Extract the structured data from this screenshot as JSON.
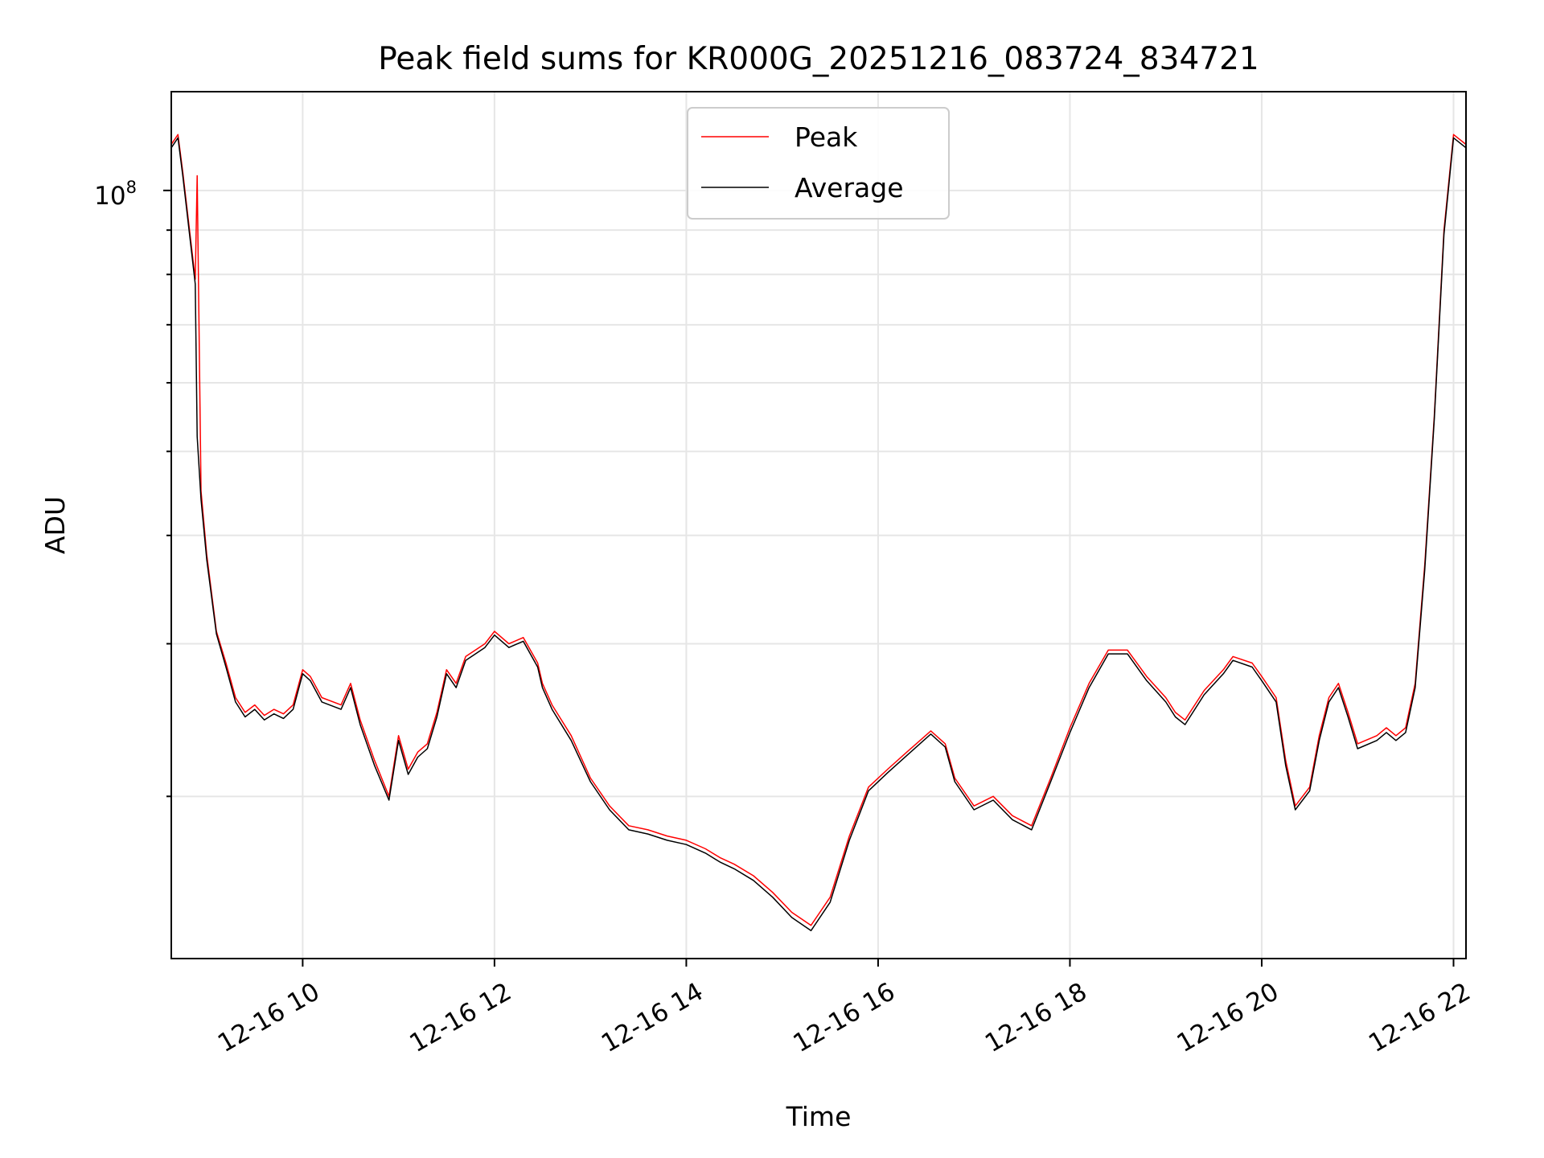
{
  "chart_data": {
    "type": "line",
    "title": "Peak field sums for KR000G_20251216_083724_834721",
    "xlabel": "Time",
    "ylabel": "ADU",
    "x_tick_labels": [
      "12-16 10",
      "12-16 12",
      "12-16 14",
      "12-16 16",
      "12-16 18",
      "12-16 20",
      "12-16 22"
    ],
    "x_tick_values": [
      10,
      12,
      14,
      16,
      18,
      20,
      22
    ],
    "y_tick_major_base": "10",
    "y_tick_major_exp": "8",
    "y_scale": "log",
    "xlim": [
      8.63,
      22.13
    ],
    "ylim": [
      13000000,
      130000000
    ],
    "grid": true,
    "legend_position": "top-center",
    "series": [
      {
        "name": "Peak",
        "color": "#ff0000",
        "x": [
          8.63,
          8.7,
          8.75,
          8.82,
          8.88,
          8.9,
          8.94,
          9.0,
          9.1,
          9.2,
          9.3,
          9.4,
          9.5,
          9.6,
          9.7,
          9.8,
          9.9,
          10.0,
          10.08,
          10.2,
          10.4,
          10.5,
          10.6,
          10.75,
          10.9,
          11.0,
          11.1,
          11.2,
          11.3,
          11.4,
          11.5,
          11.6,
          11.7,
          11.9,
          12.0,
          12.15,
          12.3,
          12.45,
          12.5,
          12.6,
          12.8,
          13.0,
          13.2,
          13.4,
          13.6,
          13.8,
          14.0,
          14.2,
          14.35,
          14.5,
          14.7,
          14.9,
          15.1,
          15.3,
          15.5,
          15.7,
          15.9,
          16.1,
          16.3,
          16.55,
          16.7,
          16.8,
          17.0,
          17.2,
          17.4,
          17.6,
          17.8,
          18.0,
          18.2,
          18.4,
          18.6,
          18.8,
          19.0,
          19.1,
          19.2,
          19.4,
          19.6,
          19.7,
          19.9,
          20.0,
          20.15,
          20.25,
          20.35,
          20.5,
          20.6,
          20.7,
          20.8,
          20.9,
          21.0,
          21.2,
          21.3,
          21.4,
          21.5,
          21.6,
          21.7,
          21.8,
          21.9,
          22.0,
          22.13
        ],
        "values": [
          113000000,
          116000000,
          105000000,
          90000000,
          79000000,
          104000000,
          45000000,
          38000000,
          31000000,
          28500000,
          26000000,
          25000000,
          25500000,
          24800000,
          25200000,
          24900000,
          25500000,
          28000000,
          27500000,
          26000000,
          25500000,
          27000000,
          24500000,
          22000000,
          20000000,
          23500000,
          21500000,
          22500000,
          23000000,
          25000000,
          28000000,
          27000000,
          29000000,
          30000000,
          31000000,
          30000000,
          30500000,
          28500000,
          27000000,
          25500000,
          23500000,
          21000000,
          19500000,
          18500000,
          18300000,
          18000000,
          17800000,
          17400000,
          17000000,
          16700000,
          16200000,
          15500000,
          14700000,
          14200000,
          15300000,
          18000000,
          20500000,
          21500000,
          22500000,
          23800000,
          23000000,
          21000000,
          19500000,
          20000000,
          19000000,
          18500000,
          21000000,
          24000000,
          27000000,
          29500000,
          29500000,
          27500000,
          26000000,
          25000000,
          24500000,
          26500000,
          28000000,
          29000000,
          28500000,
          27500000,
          26000000,
          22000000,
          19500000,
          20500000,
          23500000,
          26000000,
          27000000,
          25000000,
          23000000,
          23500000,
          24000000,
          23500000,
          24000000,
          27000000,
          37000000,
          55000000,
          90000000,
          116000000,
          113000000
        ]
      },
      {
        "name": "Average",
        "color": "#000000",
        "x": [
          8.63,
          8.7,
          8.75,
          8.82,
          8.88,
          8.9,
          8.94,
          9.0,
          9.1,
          9.2,
          9.3,
          9.4,
          9.5,
          9.6,
          9.7,
          9.8,
          9.9,
          10.0,
          10.08,
          10.2,
          10.4,
          10.5,
          10.6,
          10.75,
          10.9,
          11.0,
          11.1,
          11.2,
          11.3,
          11.4,
          11.5,
          11.6,
          11.7,
          11.9,
          12.0,
          12.15,
          12.3,
          12.45,
          12.5,
          12.6,
          12.8,
          13.0,
          13.2,
          13.4,
          13.6,
          13.8,
          14.0,
          14.2,
          14.35,
          14.5,
          14.7,
          14.9,
          15.1,
          15.3,
          15.5,
          15.7,
          15.9,
          16.1,
          16.3,
          16.55,
          16.7,
          16.8,
          17.0,
          17.2,
          17.4,
          17.6,
          17.8,
          18.0,
          18.2,
          18.4,
          18.6,
          18.8,
          19.0,
          19.1,
          19.2,
          19.4,
          19.6,
          19.7,
          19.9,
          20.0,
          20.15,
          20.25,
          20.35,
          20.5,
          20.6,
          20.7,
          20.8,
          20.9,
          21.0,
          21.2,
          21.3,
          21.4,
          21.5,
          21.6,
          21.7,
          21.8,
          21.9,
          22.0,
          22.13
        ],
        "values": [
          112000000,
          115000000,
          104000000,
          89000000,
          78000000,
          52000000,
          44000000,
          37500000,
          30800000,
          28200000,
          25700000,
          24700000,
          25200000,
          24500000,
          24900000,
          24600000,
          25200000,
          27700000,
          27200000,
          25700000,
          25200000,
          26700000,
          24200000,
          21700000,
          19800000,
          23200000,
          21200000,
          22200000,
          22700000,
          24700000,
          27700000,
          26700000,
          28700000,
          29700000,
          30700000,
          29700000,
          30200000,
          28200000,
          26700000,
          25200000,
          23200000,
          20800000,
          19300000,
          18300000,
          18100000,
          17800000,
          17600000,
          17200000,
          16800000,
          16500000,
          16000000,
          15300000,
          14500000,
          14000000,
          15100000,
          17800000,
          20300000,
          21300000,
          22300000,
          23600000,
          22800000,
          20800000,
          19300000,
          19800000,
          18800000,
          18300000,
          20800000,
          23700000,
          26700000,
          29200000,
          29200000,
          27200000,
          25700000,
          24700000,
          24200000,
          26200000,
          27700000,
          28700000,
          28200000,
          27200000,
          25700000,
          21700000,
          19300000,
          20300000,
          23200000,
          25700000,
          26700000,
          24700000,
          22700000,
          23200000,
          23700000,
          23200000,
          23700000,
          26700000,
          36500000,
          54500000,
          89000000,
          115000000,
          112000000
        ]
      }
    ]
  }
}
